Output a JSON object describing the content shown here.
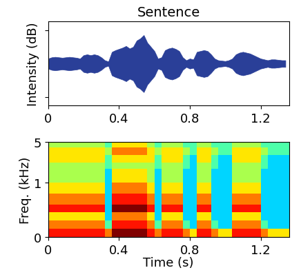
{
  "chart_data": [
    {
      "type": "area",
      "title": "Sentence",
      "ylabel": "Intensity (dB)",
      "color": "#2a3f98",
      "x": [
        0.0,
        0.02,
        0.04,
        0.06,
        0.08,
        0.1,
        0.12,
        0.14,
        0.16,
        0.18,
        0.2,
        0.22,
        0.24,
        0.26,
        0.28,
        0.3,
        0.32,
        0.34,
        0.36,
        0.38,
        0.4,
        0.42,
        0.44,
        0.46,
        0.48,
        0.5,
        0.52,
        0.54,
        0.56,
        0.58,
        0.6,
        0.62,
        0.64,
        0.66,
        0.68,
        0.7,
        0.72,
        0.74,
        0.76,
        0.78,
        0.8,
        0.82,
        0.84,
        0.86,
        0.88,
        0.9,
        0.92,
        0.94,
        0.96,
        0.98,
        1.0,
        1.02,
        1.04,
        1.06,
        1.08,
        1.1,
        1.12,
        1.14,
        1.16,
        1.18,
        1.2,
        1.22,
        1.24,
        1.26,
        1.28,
        1.3,
        1.32,
        1.34
      ],
      "values": [
        0.12,
        0.15,
        0.16,
        0.15,
        0.14,
        0.15,
        0.16,
        0.15,
        0.14,
        0.12,
        0.2,
        0.22,
        0.2,
        0.22,
        0.2,
        0.15,
        0.08,
        0.05,
        0.28,
        0.32,
        0.35,
        0.38,
        0.42,
        0.36,
        0.4,
        0.55,
        0.6,
        0.68,
        0.5,
        0.4,
        0.3,
        0.12,
        0.15,
        0.32,
        0.36,
        0.38,
        0.35,
        0.3,
        0.15,
        0.08,
        0.12,
        0.1,
        0.28,
        0.3,
        0.32,
        0.3,
        0.22,
        0.12,
        0.08,
        0.07,
        0.06,
        0.08,
        0.12,
        0.22,
        0.26,
        0.28,
        0.26,
        0.24,
        0.2,
        0.16,
        0.12,
        0.1,
        0.08,
        0.1,
        0.1,
        0.09,
        0.08,
        0.08
      ],
      "xlim": [
        0,
        1.36
      ],
      "xticks": [
        0,
        0.4,
        0.8,
        1.2
      ],
      "ylim": [
        -1,
        1
      ],
      "yticks": [
        -0.8,
        0.8
      ],
      "tick_labels": "x"
    },
    {
      "type": "heatmap",
      "xlabel": "Time (s)",
      "ylabel": "Freq. (kHz)",
      "log": "y",
      "xlim": [
        0,
        1.36
      ],
      "xticks": [
        0,
        0.4,
        0.8,
        1.2
      ],
      "ylim": [
        0,
        5
      ],
      "yticks": [
        0,
        1,
        5
      ],
      "value_range": [
        0,
        9
      ],
      "x_edges": [
        0.0,
        0.04,
        0.08,
        0.12,
        0.16,
        0.2,
        0.24,
        0.28,
        0.32,
        0.36,
        0.4,
        0.44,
        0.48,
        0.52,
        0.56,
        0.6,
        0.64,
        0.68,
        0.72,
        0.76,
        0.8,
        0.84,
        0.88,
        0.92,
        0.96,
        1.0,
        1.04,
        1.08,
        1.12,
        1.16,
        1.2,
        1.24,
        1.28,
        1.32,
        1.36
      ],
      "y_edges": [
        0,
        0.15,
        0.3,
        0.45,
        0.6,
        0.8,
        1.0,
        1.3,
        1.7,
        2.2,
        3,
        4,
        5
      ],
      "cells": [
        [
          8,
          8,
          8,
          8,
          8,
          8,
          8,
          8,
          7,
          9,
          9,
          9,
          9,
          9,
          8,
          7,
          8,
          8,
          8,
          7,
          6,
          8,
          8,
          7,
          6,
          6,
          8,
          8,
          8,
          8,
          7,
          6,
          6,
          6
        ],
        [
          7,
          7,
          7,
          7,
          7,
          7,
          7,
          7,
          4,
          8,
          8,
          8,
          8,
          8,
          7,
          4,
          7,
          7,
          7,
          4,
          3,
          7,
          7,
          4,
          3,
          3,
          7,
          7,
          7,
          7,
          4,
          3,
          3,
          3
        ],
        [
          6,
          6,
          6,
          6,
          6,
          6,
          6,
          6,
          3,
          7,
          7,
          7,
          7,
          7,
          6,
          3,
          6,
          6,
          6,
          3,
          3,
          6,
          6,
          3,
          3,
          3,
          6,
          6,
          6,
          6,
          3,
          3,
          3,
          3
        ],
        [
          8,
          8,
          8,
          8,
          8,
          8,
          8,
          8,
          3,
          9,
          9,
          9,
          9,
          9,
          8,
          3,
          8,
          8,
          8,
          3,
          3,
          8,
          8,
          3,
          3,
          3,
          8,
          8,
          8,
          8,
          3,
          3,
          3,
          3
        ],
        [
          7,
          7,
          7,
          7,
          7,
          7,
          7,
          7,
          3,
          8,
          8,
          8,
          8,
          8,
          7,
          3,
          7,
          7,
          7,
          3,
          3,
          7,
          7,
          3,
          3,
          3,
          7,
          7,
          7,
          7,
          3,
          3,
          3,
          3
        ],
        [
          6,
          6,
          6,
          6,
          6,
          6,
          6,
          6,
          3,
          7,
          7,
          7,
          7,
          7,
          6,
          3,
          6,
          6,
          6,
          3,
          3,
          6,
          6,
          3,
          3,
          3,
          6,
          6,
          6,
          6,
          3,
          3,
          3,
          3
        ],
        [
          5,
          5,
          5,
          5,
          5,
          5,
          5,
          5,
          3,
          6,
          6,
          6,
          6,
          6,
          5,
          3,
          5,
          5,
          5,
          3,
          3,
          5,
          5,
          3,
          3,
          3,
          5,
          5,
          5,
          5,
          3,
          3,
          3,
          3
        ],
        [
          5,
          5,
          5,
          5,
          5,
          5,
          5,
          5,
          3,
          6,
          6,
          6,
          6,
          6,
          5,
          3,
          5,
          5,
          5,
          3,
          3,
          5,
          5,
          3,
          3,
          3,
          5,
          5,
          5,
          5,
          3,
          3,
          3,
          3
        ],
        [
          5,
          5,
          5,
          5,
          5,
          5,
          5,
          5,
          4,
          5,
          5,
          5,
          5,
          5,
          5,
          4,
          5,
          5,
          5,
          4,
          3,
          5,
          5,
          4,
          3,
          3,
          5,
          5,
          5,
          5,
          4,
          3,
          3,
          3
        ],
        [
          6,
          6,
          6,
          6,
          6,
          6,
          6,
          6,
          4,
          6,
          6,
          6,
          6,
          6,
          6,
          4,
          6,
          6,
          6,
          4,
          3,
          6,
          6,
          4,
          3,
          3,
          6,
          6,
          6,
          6,
          4,
          3,
          3,
          3
        ],
        [
          6,
          6,
          6,
          6,
          6,
          6,
          6,
          6,
          5,
          7,
          7,
          7,
          7,
          7,
          6,
          5,
          6,
          6,
          6,
          5,
          4,
          6,
          6,
          5,
          4,
          4,
          6,
          6,
          6,
          6,
          5,
          4,
          4,
          4
        ],
        [
          5,
          5,
          5,
          5,
          5,
          5,
          5,
          5,
          4,
          6,
          6,
          6,
          6,
          6,
          5,
          4,
          5,
          5,
          5,
          4,
          4,
          5,
          5,
          4,
          4,
          4,
          5,
          5,
          5,
          5,
          4,
          4,
          4,
          4
        ]
      ]
    }
  ]
}
